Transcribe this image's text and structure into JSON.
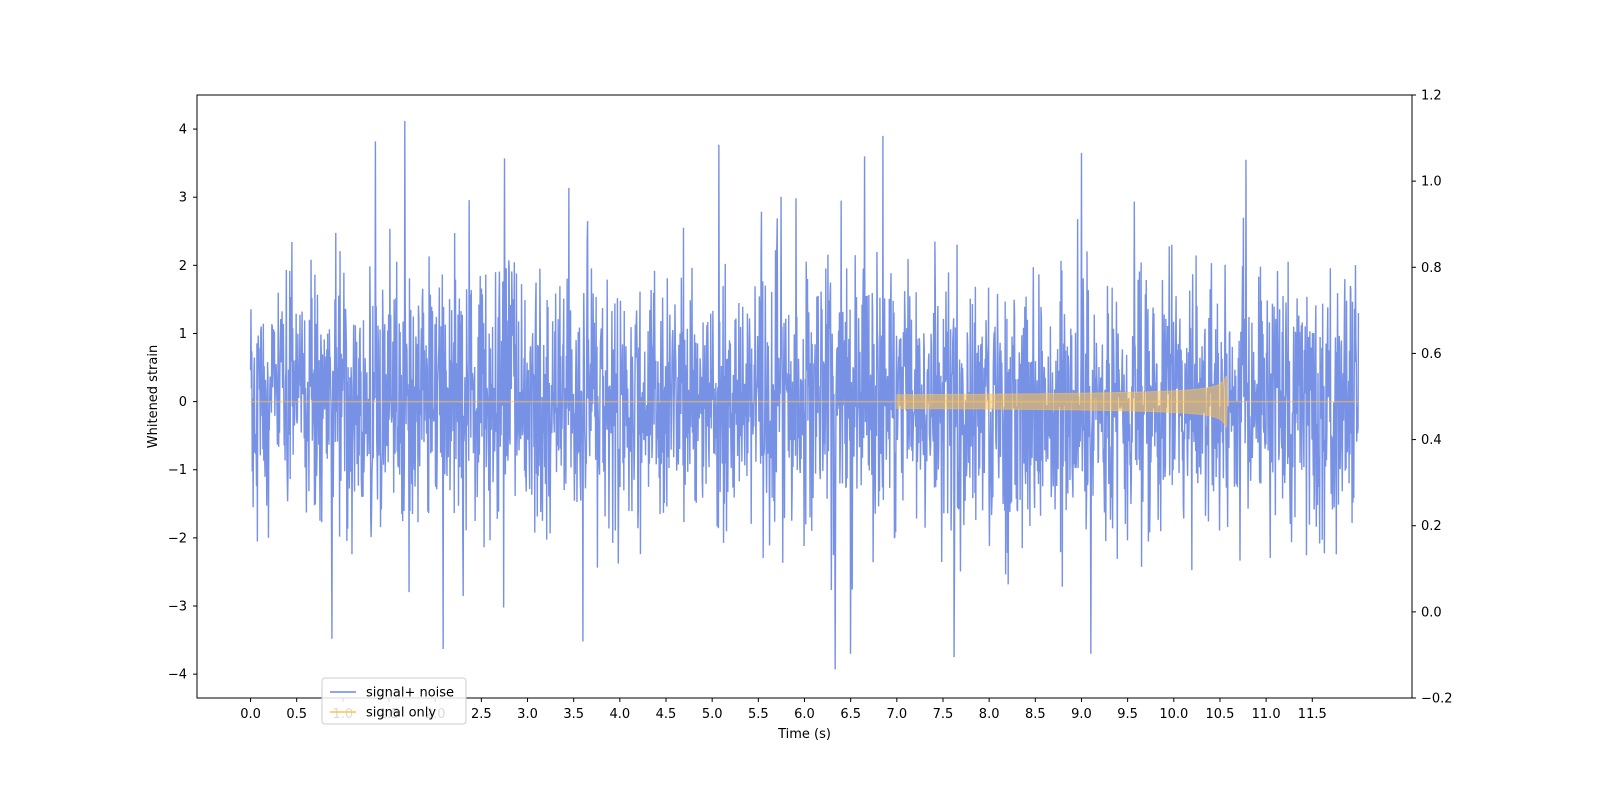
{
  "chart_data": {
    "type": "line",
    "title": "",
    "xlabel": "Time (s)",
    "ylabel": "Whitened strain",
    "xlim": [
      -0.58,
      12.58
    ],
    "ylim": [
      -4.35,
      4.5
    ],
    "y2lim": [
      -0.2,
      1.2
    ],
    "x_ticks": [
      0.0,
      0.5,
      1.0,
      1.5,
      2.0,
      2.5,
      3.0,
      3.5,
      4.0,
      4.5,
      5.0,
      5.5,
      6.0,
      6.5,
      7.0,
      7.5,
      8.0,
      8.5,
      9.0,
      9.5,
      10.0,
      10.5,
      11.0,
      11.5
    ],
    "x_tick_labels": [
      "0.0",
      "0.5",
      "1.0",
      "1.5",
      "2.0",
      "2.5",
      "3.0",
      "3.5",
      "4.0",
      "4.5",
      "5.0",
      "5.5",
      "6.0",
      "6.5",
      "7.0",
      "7.5",
      "8.0",
      "8.5",
      "9.0",
      "9.5",
      "10.0",
      "10.5",
      "11.0",
      "11.5"
    ],
    "y_ticks": [
      -4,
      -3,
      -2,
      -1,
      0,
      1,
      2,
      3,
      4
    ],
    "y_tick_labels": [
      "−4",
      "−3",
      "−2",
      "−1",
      "0",
      "1",
      "2",
      "3",
      "4"
    ],
    "y2_ticks": [
      -0.2,
      0.0,
      0.2,
      0.4,
      0.6,
      0.8,
      1.0,
      1.2
    ],
    "y2_tick_labels": [
      "−0.2",
      "0.0",
      "0.2",
      "0.4",
      "0.6",
      "0.8",
      "1.0",
      "1.2"
    ],
    "legend_position": "lower-left",
    "grid": false,
    "series": [
      {
        "name": "signal+ noise",
        "color": "#6b88e3",
        "x_range": [
          0.0,
          12.0
        ],
        "noise_std": 0.95,
        "y_range": [
          -3.93,
          4.12
        ],
        "peaks": [
          {
            "x": 1.35,
            "y": 3.82
          },
          {
            "x": 1.67,
            "y": 4.12
          },
          {
            "x": 2.75,
            "y": 3.57
          },
          {
            "x": 5.07,
            "y": 3.77
          },
          {
            "x": 6.65,
            "y": 3.6
          },
          {
            "x": 6.85,
            "y": 3.9
          },
          {
            "x": 9.0,
            "y": 3.65
          },
          {
            "x": 10.78,
            "y": 3.55
          },
          {
            "x": 0.88,
            "y": -3.48
          },
          {
            "x": 3.6,
            "y": -3.52
          },
          {
            "x": 6.33,
            "y": -3.93
          },
          {
            "x": 7.62,
            "y": -3.75
          },
          {
            "x": 9.1,
            "y": -3.7
          },
          {
            "x": 6.5,
            "y": -3.7
          },
          {
            "x": 12.0,
            "y": 1.3
          }
        ]
      },
      {
        "name": "signal only",
        "color": "#ffc34f",
        "x_range": [
          0.0,
          12.0
        ],
        "chirp_merger_time": 10.58,
        "chirp_peak_amplitude": 0.37,
        "chirp_visible_from": 7.0
      }
    ]
  }
}
